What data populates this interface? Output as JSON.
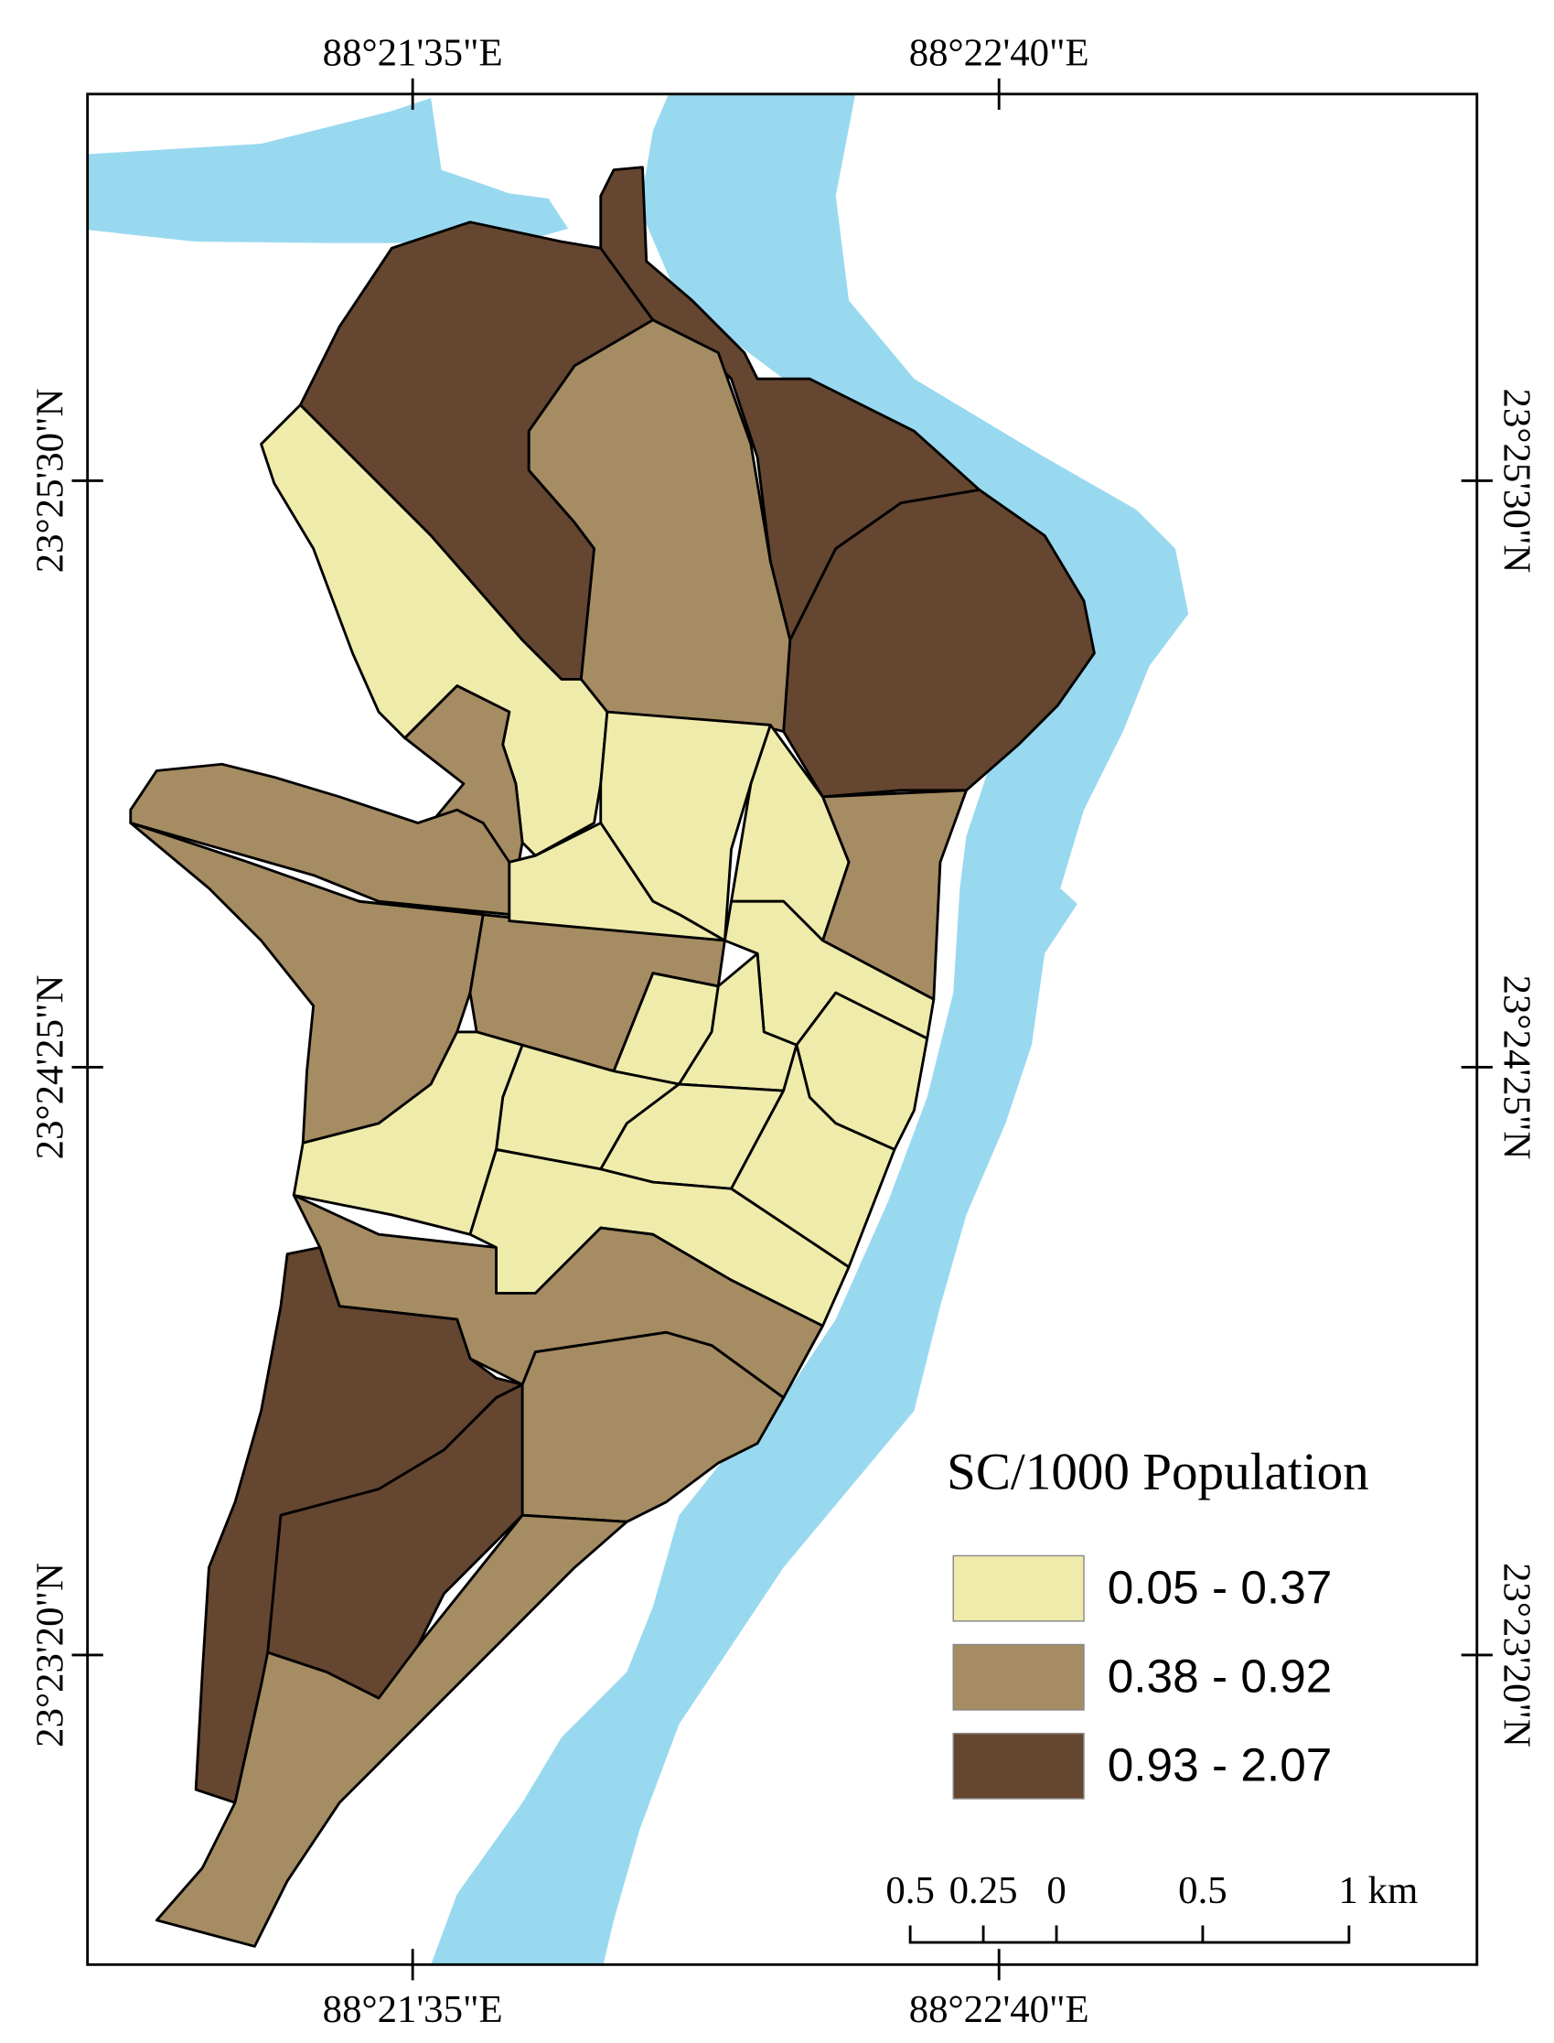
{
  "map": {
    "top_labels": [
      "88°21'35\"E",
      "88°22'40\"E"
    ],
    "bottom_labels": [
      "88°21'35\"E",
      "88°22'40\"E"
    ],
    "left_labels": [
      "23°25'30\"N",
      "23°24'25\"N",
      "23°23'20\"N"
    ],
    "right_labels": [
      "23°25'30\"N",
      "23°24'25\"N",
      "23°23'20\"N"
    ],
    "legend": {
      "title": "SC/1000 Population",
      "items": [
        {
          "label": "0.05 - 0.37",
          "color": "#efebab"
        },
        {
          "label": "0.38 - 0.92",
          "color": "#a68c63"
        },
        {
          "label": "0.93 - 2.07",
          "color": "#654630"
        }
      ]
    },
    "scale_bar": {
      "labels": [
        "0.5",
        "0.25",
        "0",
        "0.5",
        "1 km"
      ]
    },
    "water_color": "#99d9f0"
  }
}
